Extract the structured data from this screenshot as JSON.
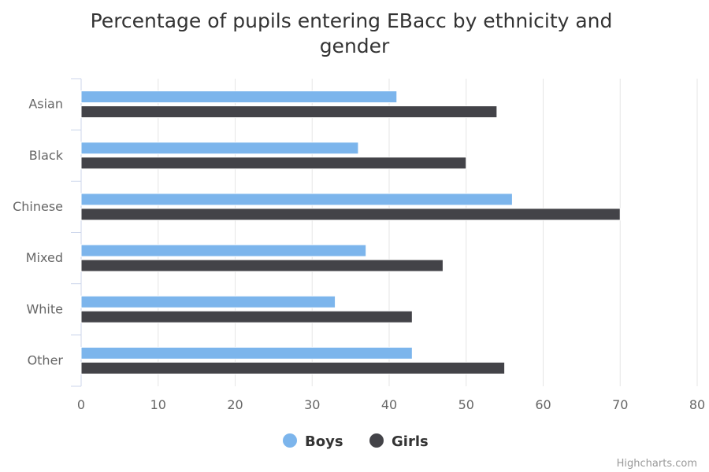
{
  "chart_data": {
    "type": "bar",
    "orientation": "horizontal",
    "title": "Percentage of pupils entering EBacc by ethnicity and gender",
    "title_lines": [
      "Percentage of pupils entering EBacc by ethnicity and",
      "gender"
    ],
    "categories": [
      "Asian",
      "Black",
      "Chinese",
      "Mixed",
      "White",
      "Other"
    ],
    "series": [
      {
        "name": "Boys",
        "color": "#7cb5ec",
        "values": [
          41,
          36,
          56,
          37,
          33,
          43
        ]
      },
      {
        "name": "Girls",
        "color": "#434348",
        "values": [
          54,
          50,
          70,
          47,
          43,
          55
        ]
      }
    ],
    "xlim": [
      0,
      80
    ],
    "ticks": [
      0,
      10,
      20,
      30,
      40,
      50,
      60,
      70,
      80
    ],
    "grid": true,
    "legend": "bottom-center"
  },
  "credits": "Highcharts.com"
}
